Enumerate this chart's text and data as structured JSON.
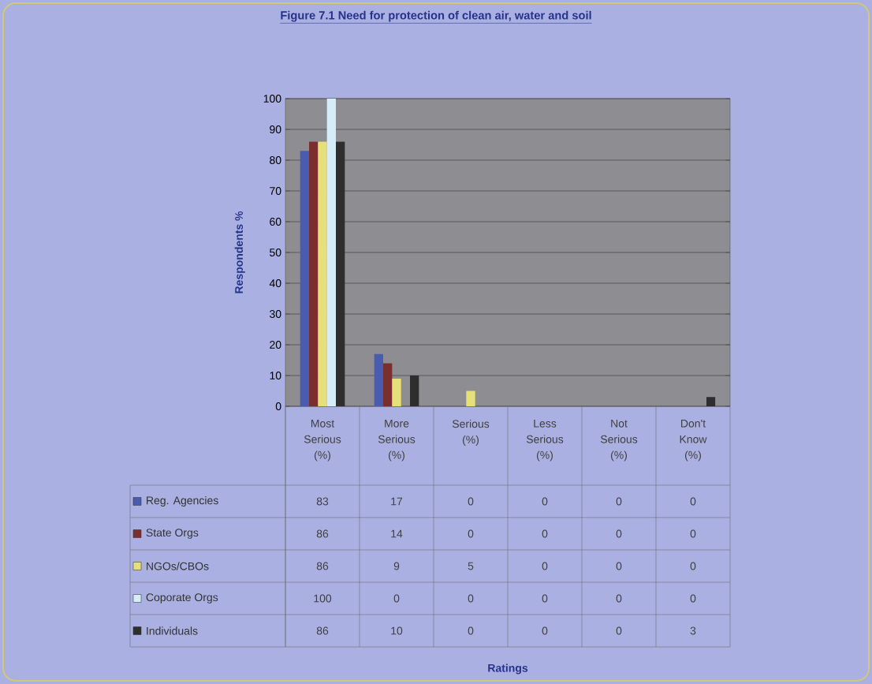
{
  "chart_data": {
    "type": "bar",
    "title": "Figure 7.1 Need for protection of clean air, water and soil",
    "annotations": [
      "Ratings"
    ],
    "ylabel": "Respondents %",
    "categories": [
      "Most Serious (%)",
      "More Serious (%)",
      "Serious (%)",
      "Less Serious (%)",
      "Not Serious (%)",
      "Don't Know (%)"
    ],
    "series": [
      {
        "name": "Reg. Agencies",
        "color": "#4a5cb0",
        "values": [
          83,
          17,
          0,
          0,
          0,
          0
        ]
      },
      {
        "name": "State Orgs",
        "color": "#7a2e2e",
        "values": [
          86,
          14,
          0,
          0,
          0,
          0
        ]
      },
      {
        "name": "NGOs/CBOs",
        "color": "#e6e07a",
        "values": [
          86,
          9,
          5,
          0,
          0,
          0
        ]
      },
      {
        "name": "Coporate Orgs",
        "color": "#d6ecf8",
        "values": [
          100,
          0,
          0,
          0,
          0,
          0
        ]
      },
      {
        "name": "Individuals",
        "color": "#2e2e2e",
        "values": [
          86,
          10,
          0,
          0,
          0,
          3
        ]
      }
    ],
    "ylim": [
      0,
      100
    ],
    "yticks": [
      0,
      10,
      20,
      30,
      40,
      50,
      60,
      70,
      80,
      90,
      100
    ],
    "grid": "y",
    "legend": "bottom",
    "data_labels": true
  }
}
